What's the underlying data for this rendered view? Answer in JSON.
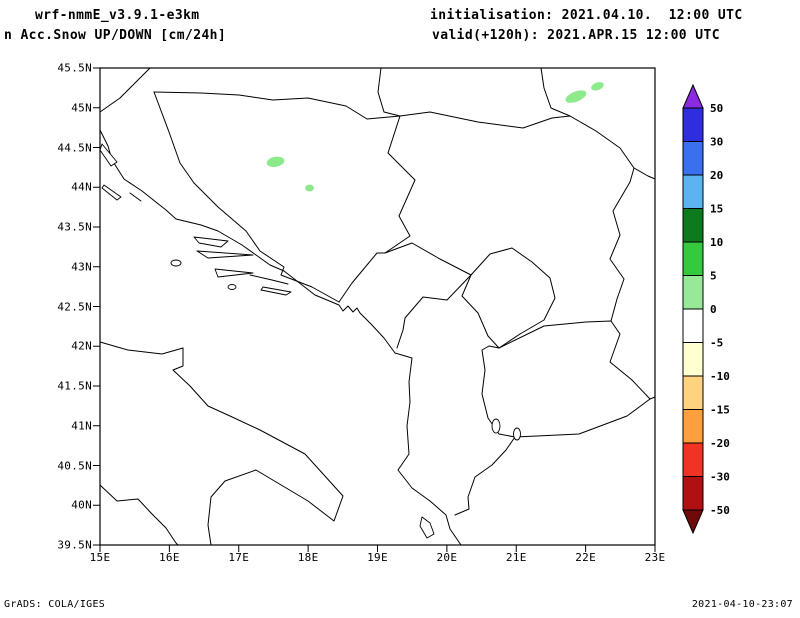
{
  "header": {
    "model": "wrf-nmmE_v3.9.1-e3km",
    "field": "n Acc.Snow UP/DOWN [cm/24h]",
    "init_line": "initialisation: 2021.04.10.  12:00 UTC",
    "valid_line": "valid(+120h): 2021.APR.15 12:00 UTC"
  },
  "map": {
    "y_ticks": [
      "45.5N",
      "45N",
      "44.5N",
      "44N",
      "43.5N",
      "43N",
      "42.5N",
      "42N",
      "41.5N",
      "41N",
      "40.5N",
      "40N",
      "39.5N"
    ],
    "x_ticks": [
      "15E",
      "16E",
      "17E",
      "18E",
      "19E",
      "20E",
      "21E",
      "22E",
      "23E"
    ],
    "snow_patches": [
      {
        "lon": 17.53,
        "lat": 44.32,
        "dlon": 0.2,
        "dlat": 0.1,
        "rot": -10
      },
      {
        "lon": 18.02,
        "lat": 43.99,
        "dlon": 0.07,
        "dlat": 0.06,
        "rot": 0
      },
      {
        "lon": 21.86,
        "lat": 45.14,
        "dlon": 0.26,
        "dlat": 0.1,
        "rot": -22
      },
      {
        "lon": 22.17,
        "lat": 45.27,
        "dlon": 0.13,
        "dlat": 0.07,
        "rot": -20
      }
    ]
  },
  "colorbar": {
    "labels": [
      "50",
      "30",
      "20",
      "15",
      "10",
      "5",
      "0",
      "-5",
      "-10",
      "-15",
      "-20",
      "-30",
      "-50"
    ],
    "arrow_top_color": "#8a2be2",
    "segment_colors": [
      "#2e2ee0",
      "#3a6ff0",
      "#5ab4f0",
      "#0e7a1e",
      "#35c93e",
      "#98e89a",
      "#ffffff",
      "#ffffd0",
      "#ffd27f",
      "#ff9e3d",
      "#f03325",
      "#b01010"
    ],
    "arrow_bottom_color": "#700a0a"
  },
  "colors": {
    "snow_patch": "#8ce98c",
    "coastline": "#000000",
    "background": "#ffffff"
  },
  "footer": {
    "left": "GrADS: COLA/IGES",
    "right": "2021-04-10-23:07"
  }
}
